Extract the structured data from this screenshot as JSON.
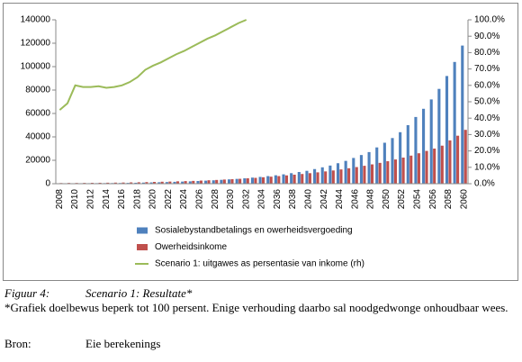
{
  "chart_data": {
    "type": "bar",
    "categories": [
      "2008",
      null,
      "2010",
      null,
      "2012",
      null,
      "2014",
      null,
      "2016",
      null,
      "2018",
      null,
      "2020",
      null,
      "2022",
      null,
      "2024",
      null,
      "2026",
      null,
      "2028",
      null,
      "2030",
      null,
      "2032",
      null,
      "2034",
      null,
      "2036",
      null,
      "2038",
      null,
      "2040",
      null,
      "2042",
      null,
      "2044",
      null,
      "2046",
      null,
      "2048",
      null,
      "2050",
      null,
      "2052",
      null,
      "2054",
      null,
      "2056",
      null,
      "2058",
      null,
      "2060"
    ],
    "series": [
      {
        "name": "Sosialebystandbetalings en owerheidsvergoeding",
        "color": "#4f81bd",
        "type": "bar",
        "values": [
          250,
          320,
          380,
          410,
          440,
          470,
          500,
          550,
          600,
          700,
          800,
          950,
          1100,
          1250,
          1400,
          1600,
          1800,
          2000,
          2300,
          2600,
          2900,
          3300,
          3700,
          4100,
          4600,
          5200,
          5800,
          6500,
          7200,
          8000,
          9000,
          10000,
          11000,
          12500,
          14000,
          15500,
          17500,
          19500,
          22000,
          24500,
          27000,
          31000,
          35000,
          39000,
          44000,
          50000,
          57000,
          64000,
          72000,
          81000,
          92000,
          104000,
          118000
        ]
      },
      {
        "name": "Owerheidsinkome",
        "color": "#c0504d",
        "type": "bar",
        "values": [
          560,
          650,
          630,
          690,
          745,
          790,
          855,
          930,
          1000,
          1130,
          1230,
          1370,
          1530,
          1690,
          1830,
          2030,
          2220,
          2400,
          2670,
          2940,
          3200,
          3550,
          3870,
          4180,
          4600,
          5000,
          5500,
          6000,
          6500,
          7100,
          7700,
          8300,
          9000,
          9700,
          10500,
          11300,
          12200,
          13200,
          14200,
          15300,
          16500,
          17800,
          19200,
          20700,
          22300,
          24000,
          26000,
          28000,
          30000,
          32500,
          37000,
          41000,
          46000
        ]
      },
      {
        "name": "Scenario 1: uitgawes as persentasie van inkome (rh)",
        "color": "#9bbb59",
        "type": "line",
        "axis": "y2",
        "values": [
          45,
          49,
          60,
          59,
          59,
          59.5,
          58.5,
          59,
          60,
          62,
          65,
          69.5,
          72,
          74,
          76.5,
          79,
          81,
          83.5,
          86,
          88.5,
          90.5,
          93,
          95.5,
          98,
          100,
          null,
          null,
          null,
          null,
          null,
          null,
          null,
          null,
          null,
          null,
          null,
          null,
          null,
          null,
          null,
          null,
          null,
          null,
          null,
          null,
          null,
          null,
          null,
          null,
          null,
          null,
          null,
          null
        ]
      }
    ],
    "ylim": [
      0,
      140000
    ],
    "yticks": [
      0,
      20000,
      40000,
      60000,
      80000,
      100000,
      120000,
      140000
    ],
    "y2lim": [
      0,
      100
    ],
    "y2ticks": [
      {
        "value": 0,
        "label": "0.0%"
      },
      {
        "value": 10,
        "label": "10.0%"
      },
      {
        "value": 20,
        "label": "20.0%"
      },
      {
        "value": 30,
        "label": "30.0%"
      },
      {
        "value": 40,
        "label": "40.0%"
      },
      {
        "value": 50,
        "label": "50.0%"
      },
      {
        "value": 60,
        "label": "60.0%"
      },
      {
        "value": 70,
        "label": "70.0%"
      },
      {
        "value": 80,
        "label": "80.0%"
      },
      {
        "value": 90,
        "label": "90.0%"
      },
      {
        "value": 100,
        "label": "100.0%"
      }
    ],
    "grid": false,
    "legend": "bottom"
  },
  "caption": {
    "label": "Figuur 4:",
    "title": "Scenario 1: Resultate*"
  },
  "note": "*Grafiek doelbewus beperk tot 100 persent. Enige verhouding daarbo sal noodgedwonge onhoudbaar wees.",
  "source": {
    "label": "Bron:",
    "text": "Eie berekenings"
  }
}
